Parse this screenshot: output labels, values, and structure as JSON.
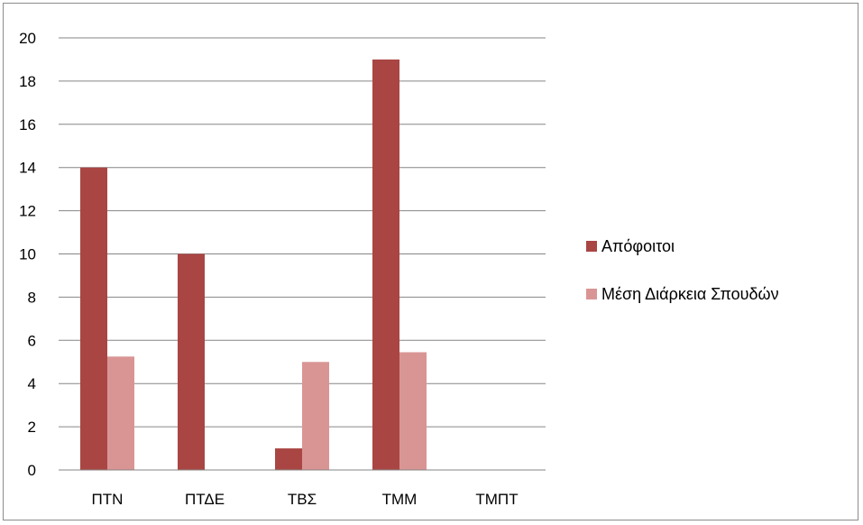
{
  "chart_data": {
    "type": "bar",
    "title": "",
    "xlabel": "",
    "ylabel": "",
    "categories": [
      "ΠΤΝ",
      "ΠΤΔΕ",
      "ΤΒΣ",
      "ΤΜΜ",
      "ΤΜΠΤ"
    ],
    "series": [
      {
        "name": "Απόφοιτοι",
        "color": "#a94643",
        "values": [
          14,
          10,
          1,
          19,
          0
        ]
      },
      {
        "name": "Μέση Διάρκεια Σπουδών",
        "color": "#d99594",
        "values": [
          5.25,
          null,
          5.0,
          5.45,
          null
        ]
      }
    ],
    "ylim": [
      0,
      20
    ],
    "yticks": [
      "0",
      "2",
      "4",
      "6",
      "8",
      "10",
      "12",
      "14",
      "16",
      "18",
      "20"
    ],
    "grid": true,
    "legend": "right"
  }
}
